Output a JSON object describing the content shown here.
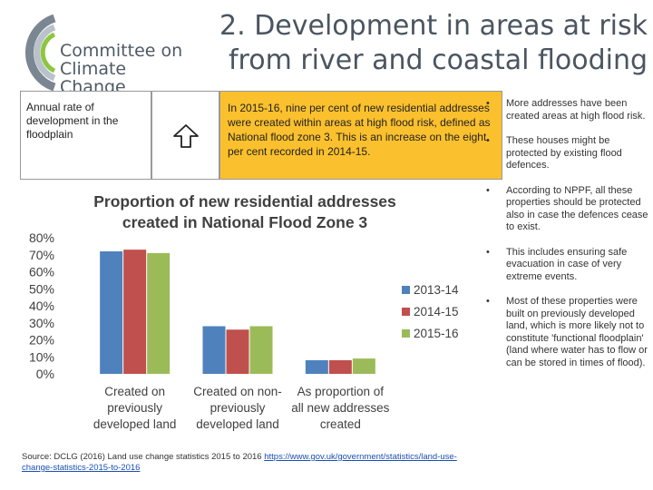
{
  "logo": {
    "line1": "Committee on",
    "line2": "Climate Change",
    "colors": {
      "arc_dark": "#7a8692",
      "arc_light": "#b9c2ca",
      "arc_green": "#8dc63f",
      "text": "#4d5a66"
    }
  },
  "title": {
    "line1": "2. Development in areas at risk",
    "line2": "from river and coastal flooding"
  },
  "indicator": {
    "label": "Annual rate of development in the floodplain",
    "arrow_icon": "up-arrow-icon",
    "description": "In 2015-16, nine per cent of new residential addresses were created within areas at high flood risk, defined as National flood zone 3. This is an increase on the eight per cent recorded in 2014-15.",
    "highlight_color": "#fbc02d"
  },
  "chart_data": {
    "type": "bar",
    "title_line1": "Proportion of new residential addresses",
    "title_line2": "created in National Flood Zone 3",
    "categories": [
      [
        "Created on",
        "previously",
        "developed land"
      ],
      [
        "Created on non-",
        "previously",
        "developed land"
      ],
      [
        "As proportion of",
        "all new addresses",
        "created"
      ]
    ],
    "series": [
      {
        "name": "2013-14",
        "color": "#4f81bd",
        "values": [
          0.72,
          0.28,
          0.08
        ]
      },
      {
        "name": "2014-15",
        "color": "#c0504d",
        "values": [
          0.73,
          0.26,
          0.08
        ]
      },
      {
        "name": "2015-16",
        "color": "#9bbb59",
        "values": [
          0.71,
          0.28,
          0.09
        ]
      }
    ],
    "yticks": [
      "0%",
      "10%",
      "20%",
      "30%",
      "40%",
      "50%",
      "60%",
      "70%",
      "80%"
    ],
    "ylim": [
      0,
      0.8
    ],
    "grid": false,
    "legend_position": "right"
  },
  "source": {
    "prefix": "Source: DCLG (2016) Land use change statistics 2015 to 2016 ",
    "link": "https://www.gov.uk/government/statistics/land-use-change-statistics-2015-to-2016"
  },
  "bullets": [
    "More addresses have been created areas at high flood risk.",
    "These houses might be protected by existing flood defences.",
    "According to NPPF, all these properties should be protected also in case the defences cease to exist.",
    "This includes ensuring safe evacuation in case of very extreme events.",
    "Most of these properties were built on previously developed land, which is more likely not to constitute 'functional floodplain' (land where water has to flow or can be stored in times of flood)."
  ],
  "bullet_glyph": "•"
}
